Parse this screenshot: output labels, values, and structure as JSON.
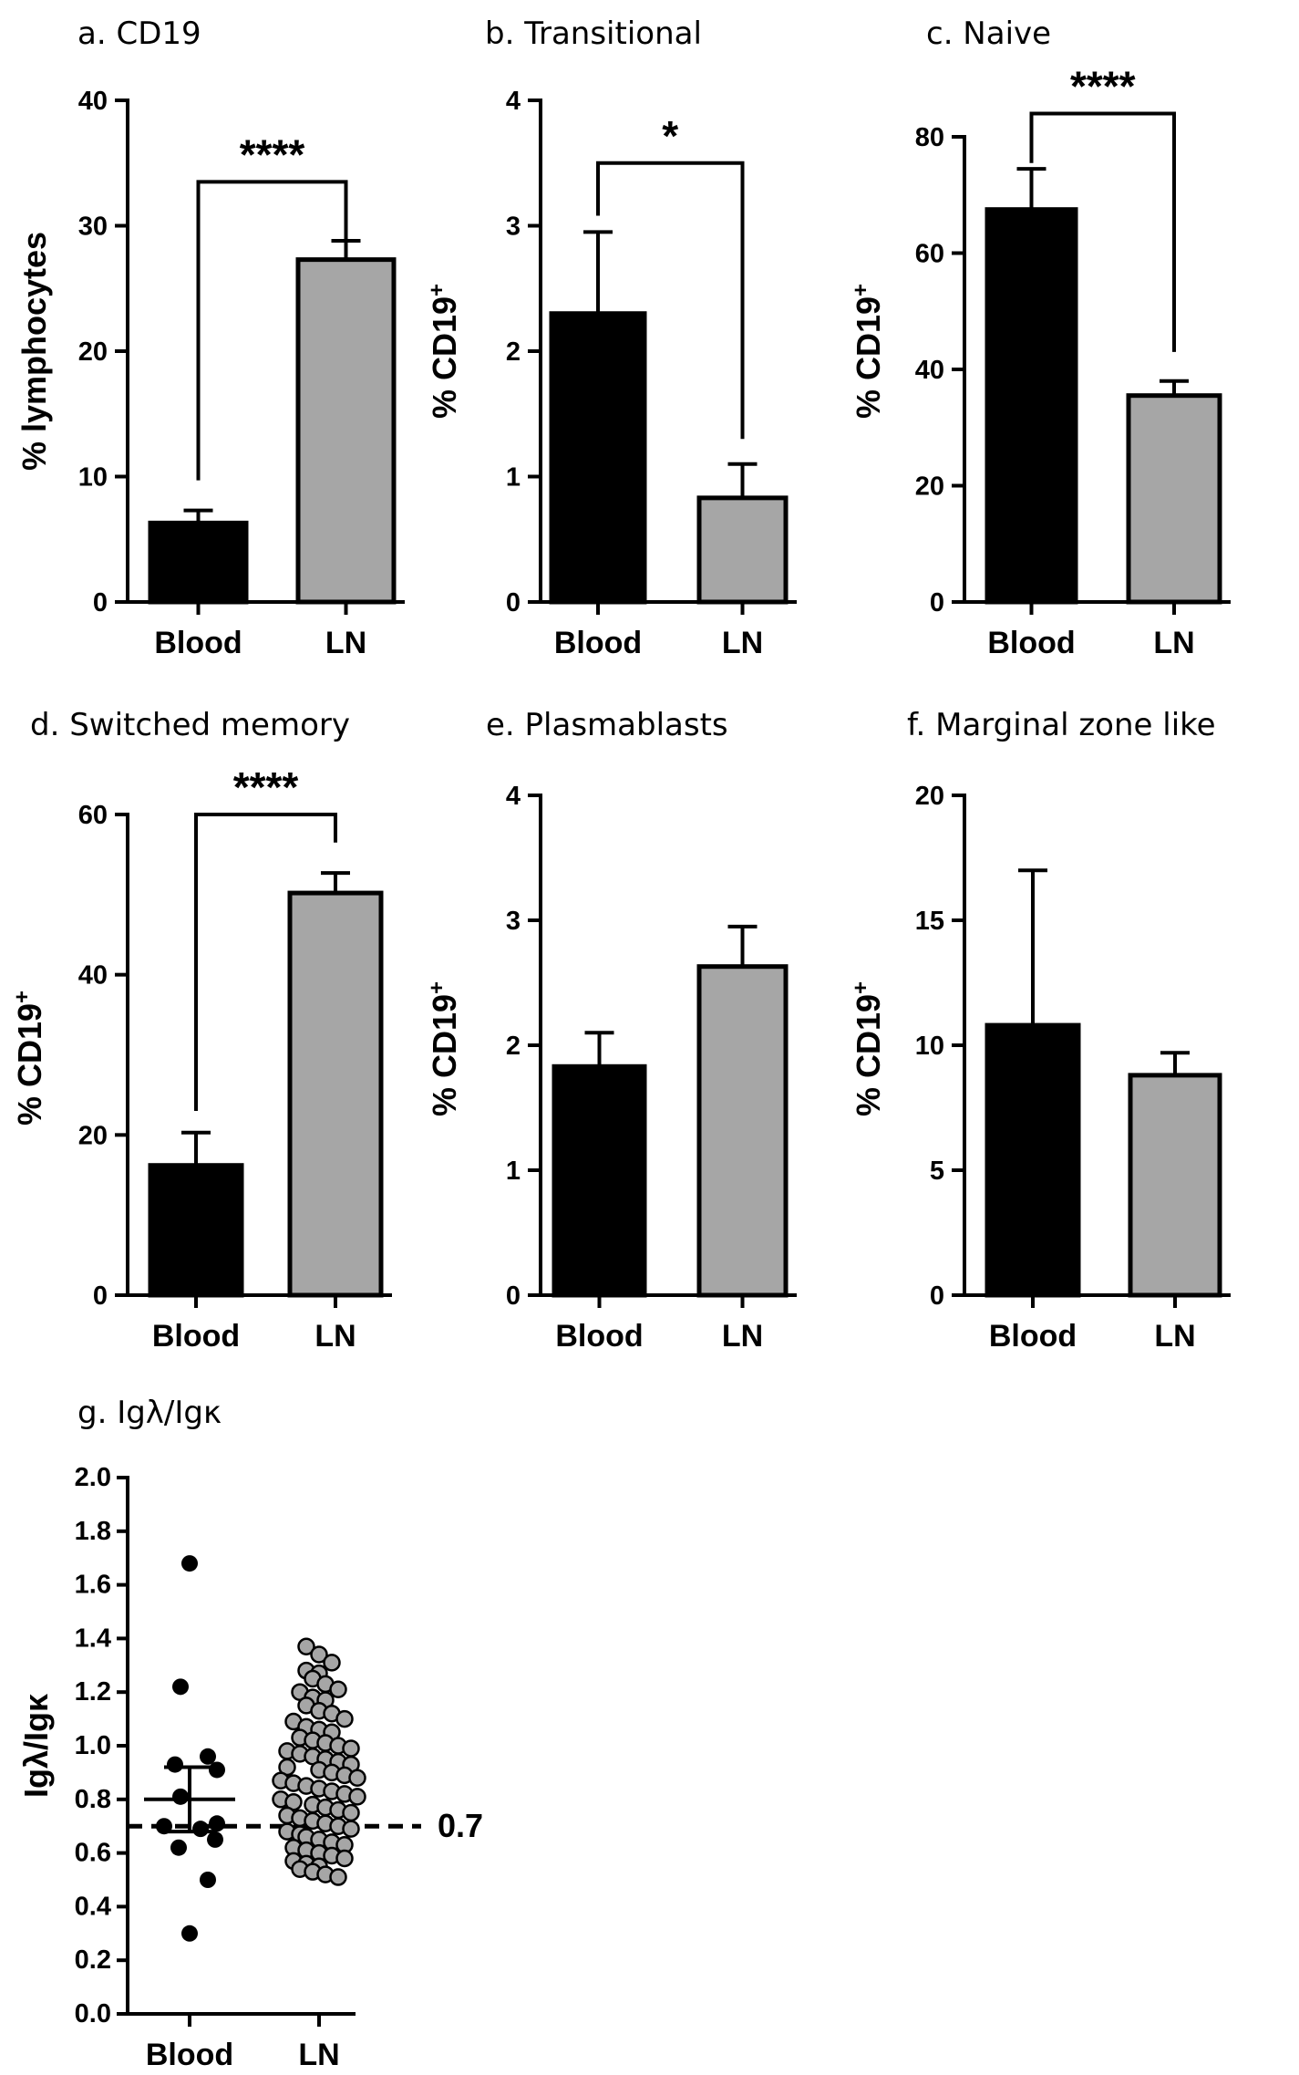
{
  "chart_data": [
    {
      "type": "bar",
      "title": "a. CD19",
      "ylabel": "% lymphocytes",
      "ylim": [
        0,
        40
      ],
      "yticks": [
        "0",
        "10",
        "20",
        "30",
        "40"
      ],
      "categories": [
        "Blood",
        "LN"
      ],
      "values": [
        6.3,
        27.3
      ],
      "errors": [
        1.0,
        1.5
      ],
      "colors": [
        "#000000",
        "#a6a6a6"
      ],
      "significance": "****",
      "bracket_heights": [
        9.7,
        33.5,
        33.5,
        28.9
      ]
    },
    {
      "type": "bar",
      "title": "b. Transitional",
      "ylabel": "% CD19",
      "ylabel_sup": "+",
      "ylim": [
        0,
        4
      ],
      "yticks": [
        "0",
        "1",
        "2",
        "3",
        "4"
      ],
      "categories": [
        "Blood",
        "LN"
      ],
      "values": [
        2.3,
        0.83
      ],
      "errors": [
        0.65,
        0.27
      ],
      "colors": [
        "#000000",
        "#a6a6a6"
      ],
      "significance": "*",
      "bracket_heights": [
        3.08,
        3.5,
        3.5,
        1.3
      ]
    },
    {
      "type": "bar",
      "title": "c. Naive",
      "ylabel": "% CD19",
      "ylabel_sup": "+",
      "ylim": [
        0,
        80
      ],
      "yticks": [
        "0",
        "20",
        "40",
        "60",
        "80"
      ],
      "categories": [
        "Blood",
        "LN"
      ],
      "values": [
        67.5,
        35.5
      ],
      "errors": [
        7.0,
        2.5
      ],
      "colors": [
        "#000000",
        "#a6a6a6"
      ],
      "significance": "****",
      "bracket_heights": [
        75.5,
        84.0,
        84.0,
        43.0
      ]
    },
    {
      "type": "bar",
      "title": "d. Switched memory",
      "ylabel": "% CD19",
      "ylabel_sup": "+",
      "ylim": [
        0,
        60
      ],
      "yticks": [
        "0",
        "20",
        "40",
        "60"
      ],
      "categories": [
        "Blood",
        "LN"
      ],
      "values": [
        16.2,
        50.2
      ],
      "errors": [
        4.1,
        2.5
      ],
      "colors": [
        "#000000",
        "#a6a6a6"
      ],
      "significance": "****",
      "bracket_heights": [
        23.0,
        60.0,
        60.0,
        56.5
      ]
    },
    {
      "type": "bar",
      "title": "e. Plasmablasts",
      "ylabel": "% CD19",
      "ylabel_sup": "+",
      "ylim": [
        0,
        4
      ],
      "yticks": [
        "0",
        "1",
        "2",
        "3",
        "4"
      ],
      "categories": [
        "Blood",
        "LN"
      ],
      "values": [
        1.83,
        2.63
      ],
      "errors": [
        0.27,
        0.32
      ],
      "colors": [
        "#000000",
        "#a6a6a6"
      ]
    },
    {
      "type": "bar",
      "title": "f. Marginal zone like",
      "ylabel": "% CD19",
      "ylabel_sup": "+",
      "ylim": [
        0,
        20
      ],
      "yticks": [
        "0",
        "5",
        "10",
        "15",
        "20"
      ],
      "categories": [
        "Blood",
        "LN"
      ],
      "values": [
        10.8,
        8.8
      ],
      "errors": [
        6.2,
        0.9
      ],
      "colors": [
        "#000000",
        "#a6a6a6"
      ]
    },
    {
      "type": "scatter",
      "title": "g. Igλ/Igκ",
      "ylabel": "Igλ/Igκ",
      "ylim": [
        0,
        2
      ],
      "yticks": [
        "0.0",
        "0.2",
        "0.4",
        "0.6",
        "0.8",
        "1.0",
        "1.2",
        "1.4",
        "1.6",
        "1.8",
        "2.0"
      ],
      "categories": [
        "Blood",
        "LN"
      ],
      "reference_line": 0.7,
      "reference_label": "0.7",
      "series": [
        {
          "name": "Blood",
          "color": "#000000",
          "mean": 0.8,
          "sem": [
            0.68,
            0.92
          ],
          "values": [
            1.68,
            1.22,
            0.96,
            0.93,
            0.91,
            0.81,
            0.71,
            0.7,
            0.69,
            0.65,
            0.62,
            0.5,
            0.3
          ]
        },
        {
          "name": "LN",
          "color": "#a6a6a6",
          "values": [
            1.37,
            1.34,
            1.31,
            1.28,
            1.27,
            1.25,
            1.23,
            1.21,
            1.2,
            1.18,
            1.17,
            1.15,
            1.13,
            1.12,
            1.1,
            1.09,
            1.07,
            1.06,
            1.05,
            1.03,
            1.02,
            1.01,
            1.0,
            0.99,
            0.98,
            0.97,
            0.96,
            0.95,
            0.94,
            0.93,
            0.92,
            0.91,
            0.9,
            0.89,
            0.88,
            0.87,
            0.86,
            0.85,
            0.84,
            0.83,
            0.82,
            0.81,
            0.8,
            0.79,
            0.78,
            0.77,
            0.76,
            0.75,
            0.74,
            0.73,
            0.72,
            0.71,
            0.7,
            0.69,
            0.68,
            0.67,
            0.66,
            0.65,
            0.64,
            0.63,
            0.62,
            0.61,
            0.6,
            0.59,
            0.58,
            0.57,
            0.56,
            0.55,
            0.54,
            0.53,
            0.52,
            0.51
          ]
        }
      ]
    }
  ]
}
